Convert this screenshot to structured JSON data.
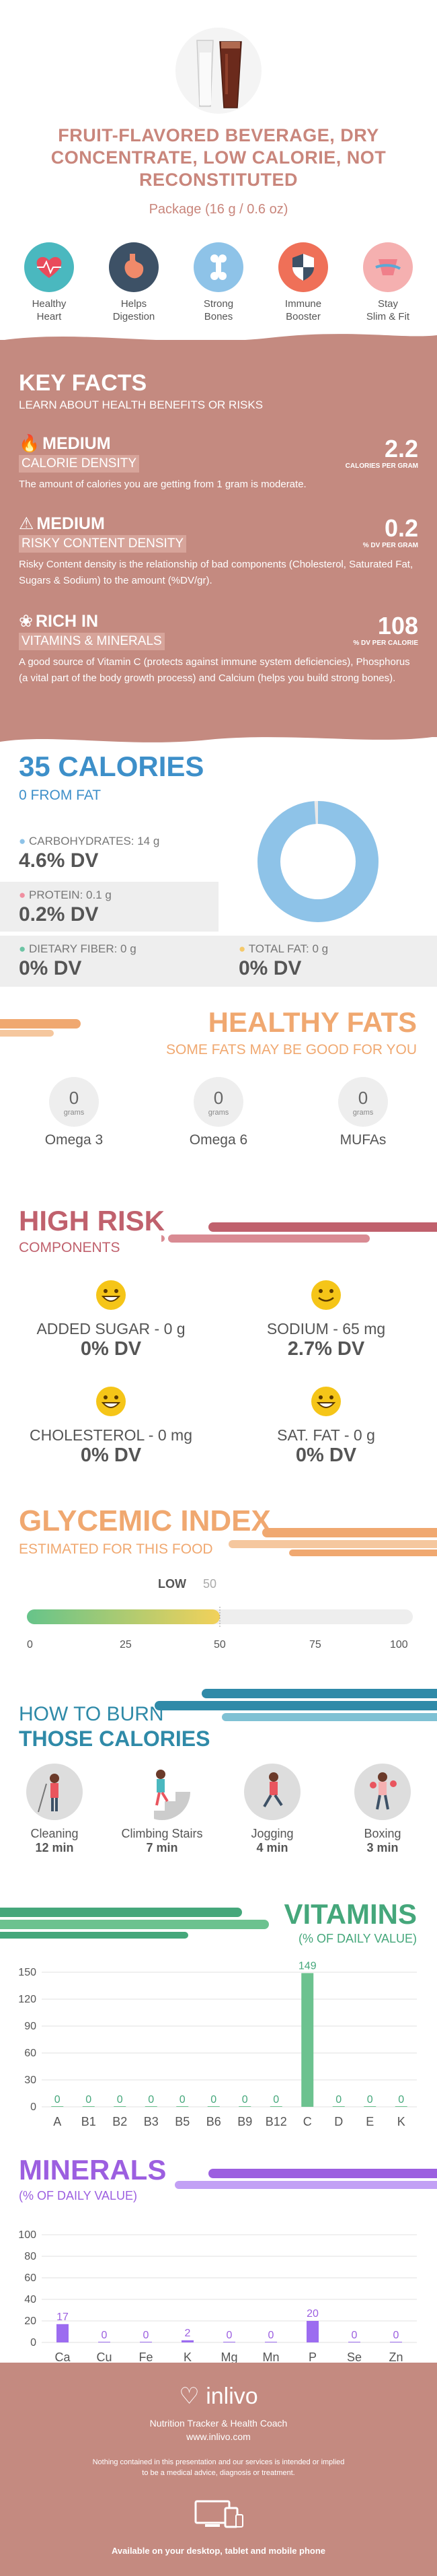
{
  "header": {
    "title_lines": [
      "FRUIT-FLAVORED BEVERAGE, DRY",
      "CONCENTRATE, LOW CALORIE, NOT",
      "RECONSTITUTED"
    ],
    "package": "Package (16 g / 0.6 oz)"
  },
  "benefits": [
    {
      "line1": "Healthy",
      "line2": "Heart",
      "icon": "heart-ecg-icon",
      "color": "#4ab8bf"
    },
    {
      "line1": "Helps",
      "line2": "Digestion",
      "icon": "stomach-icon",
      "color": "#3d5166"
    },
    {
      "line1": "Strong",
      "line2": "Bones",
      "icon": "bone-icon",
      "color": "#8ec3e8"
    },
    {
      "line1": "Immune",
      "line2": "Booster",
      "icon": "shield-icon",
      "color": "#ef7058"
    },
    {
      "line1": "Stay",
      "line2": "Slim & Fit",
      "icon": "tape-measure-icon",
      "color": "#f5b0b0"
    }
  ],
  "key_facts": {
    "title": "KEY FACTS",
    "subtitle": "LEARN ABOUT HEALTH BENEFITS OR RISKS",
    "items": [
      {
        "level": "MEDIUM",
        "name": "CALORIE DENSITY",
        "value": "2.2",
        "unit": "CALORIES PER GRAM",
        "desc": "The amount of calories you are getting from 1 gram is moderate."
      },
      {
        "level": "MEDIUM",
        "name": "RISKY CONTENT DENSITY",
        "value": "0.2",
        "unit": "% DV PER GRAM",
        "desc": "Risky Content density is the relationship of bad components (Cholesterol, Saturated Fat, Sugars & Sodium) to the amount (%DV/gr)."
      },
      {
        "level": "RICH  IN",
        "name": "VITAMINS & MINERALS",
        "value": "108",
        "unit": "% DV PER CALORIE",
        "desc": "A good source of Vitamin C (protects against immune system deficiencies), Phosphorus (a vital part of the body growth process) and Calcium (helps you build strong bones)."
      }
    ]
  },
  "calories": {
    "title": "35 CALORIES",
    "subtitle": "0 FROM FAT",
    "carbs": {
      "label": "CARBOHYDRATES: 14 g",
      "dv": "4.6% DV",
      "color": "#8ec3e8"
    },
    "protein": {
      "label": "PROTEIN: 0.1 g",
      "dv": "0.2% DV",
      "color": "#f08fa0"
    },
    "fiber": {
      "label": "DIETARY FIBER: 0 g",
      "dv": "0% DV",
      "color": "#6cc4a4"
    },
    "fat": {
      "label": "TOTAL FAT: 0 g",
      "dv": "0% DV",
      "color": "#f5c96a"
    },
    "donut_share": {
      "carbs": 0.99,
      "protein": 0.01
    }
  },
  "healthy_fats": {
    "title": "HEALTHY FATS",
    "subtitle": "SOME FATS MAY BE GOOD FOR YOU",
    "items": [
      {
        "value": "0",
        "unit": "grams",
        "name": "Omega 3"
      },
      {
        "value": "0",
        "unit": "grams",
        "name": "Omega 6"
      },
      {
        "value": "0",
        "unit": "grams",
        "name": "MUFAs"
      }
    ]
  },
  "high_risk": {
    "title": "HIGH RISK",
    "subtitle": "COMPONENTS",
    "items": [
      {
        "label": "ADDED SUGAR - 0 g",
        "dv": "0% DV"
      },
      {
        "label": "SODIUM - 65 mg",
        "dv": "2.7% DV"
      },
      {
        "label": "CHOLESTEROL - 0 mg",
        "dv": "0% DV"
      },
      {
        "label": "SAT. FAT - 0 g",
        "dv": "0% DV"
      }
    ]
  },
  "glycemic": {
    "title": "GLYCEMIC INDEX",
    "subtitle": "ESTIMATED FOR THIS FOOD",
    "level": "LOW",
    "value": 50,
    "value_label": "50",
    "ticks": [
      "0",
      "25",
      "50",
      "75",
      "100"
    ]
  },
  "burn": {
    "title1": "HOW TO BURN",
    "title2": "THOSE CALORIES",
    "activities": [
      {
        "name": "Cleaning",
        "time": "12 min",
        "icon": "cleaning-icon"
      },
      {
        "name": "Climbing Stairs",
        "time": "7 min",
        "icon": "stairs-icon"
      },
      {
        "name": "Jogging",
        "time": "4 min",
        "icon": "jogging-icon"
      },
      {
        "name": "Boxing",
        "time": "3 min",
        "icon": "boxing-icon"
      }
    ]
  },
  "vitamins": {
    "title": "VITAMINS",
    "subtitle": "(% OF DAILY VALUE)",
    "chart_data": {
      "type": "bar",
      "categories": [
        "A",
        "B1",
        "B2",
        "B3",
        "B5",
        "B6",
        "B9",
        "B12",
        "C",
        "D",
        "E",
        "K"
      ],
      "values": [
        0,
        0,
        0,
        0,
        0,
        0,
        0,
        0,
        149,
        0,
        0,
        0
      ],
      "value_labels": [
        "0",
        "0",
        "0",
        "0",
        "0",
        "0",
        "0",
        "0",
        "149",
        "0",
        "0",
        "0"
      ],
      "yticks": [
        "0",
        "30",
        "60",
        "90",
        "120",
        "150"
      ],
      "ylim": [
        0,
        150
      ],
      "color": "#6cc28f",
      "label_color": "#45a77b"
    }
  },
  "minerals": {
    "title": "MINERALS",
    "subtitle": "(% OF DAILY VALUE)",
    "chart_data": {
      "type": "bar",
      "categories": [
        "Ca",
        "Cu",
        "Fe",
        "K",
        "Mg",
        "Mn",
        "P",
        "Se",
        "Zn"
      ],
      "values": [
        17,
        0,
        0,
        2,
        0,
        0,
        20,
        0,
        0
      ],
      "value_labels": [
        "17",
        "0",
        "0",
        "2",
        "0",
        "0",
        "20",
        "0",
        "0"
      ],
      "yticks": [
        "0",
        "20",
        "40",
        "60",
        "80",
        "100"
      ],
      "ylim": [
        0,
        100
      ],
      "color": "#9c6cf0",
      "label_color": "#9c5fe0"
    }
  },
  "footer": {
    "brand": "inlivo",
    "tagline": "Nutrition Tracker & Health Coach",
    "url": "www.inlivo.com",
    "disclaimer1": "Nothing contained in this presentation and our services is intended or implied",
    "disclaimer2": "to be a medical advice, diagnosis or treatment.",
    "available": "Available on your desktop, tablet and mobile phone"
  }
}
